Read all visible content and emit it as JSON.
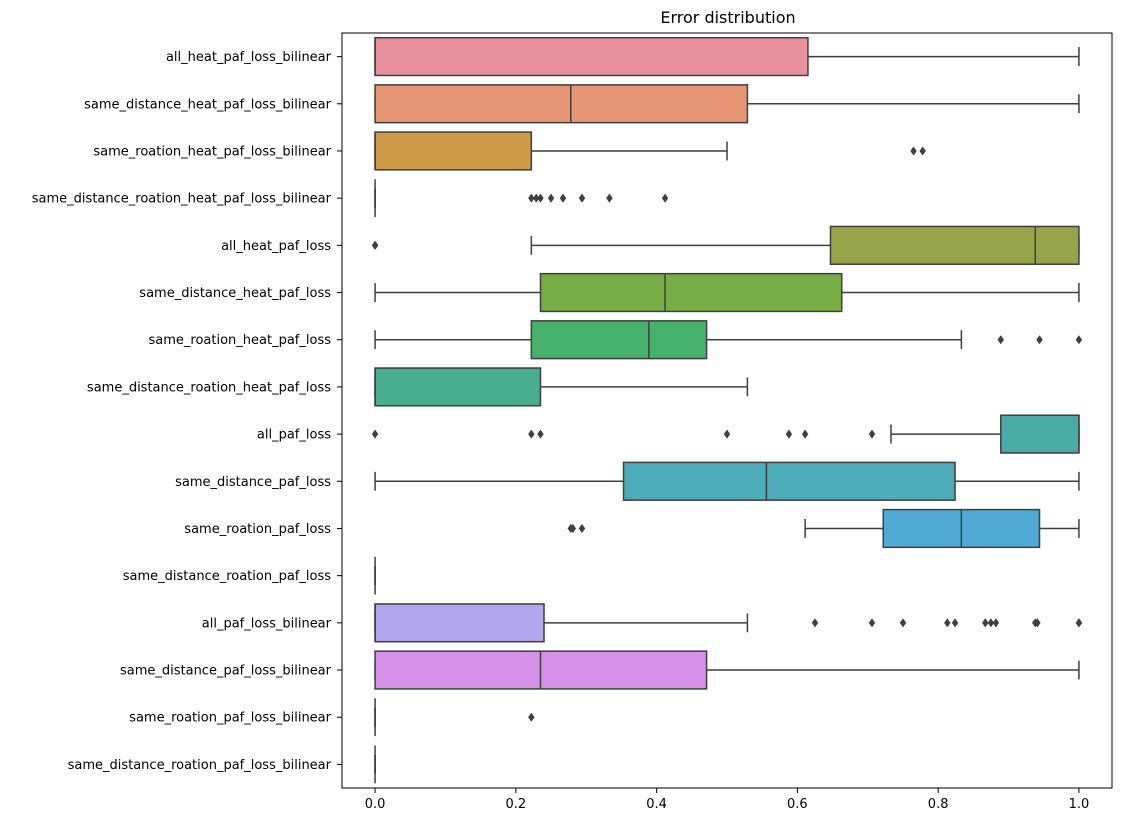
{
  "chart_data": {
    "type": "boxplot",
    "orientation": "horizontal",
    "title": "Error distribution",
    "xlabel": "",
    "ylabel": "",
    "xlim": [
      -0.047,
      1.047
    ],
    "xticks": [
      0.0,
      0.2,
      0.4,
      0.6,
      0.8,
      1.0
    ],
    "xtick_labels": [
      "0.0",
      "0.2",
      "0.4",
      "0.6",
      "0.8",
      "1.0"
    ],
    "grid": false,
    "categories": [
      "all_heat_paf_loss_bilinear",
      "same_distance_heat_paf_loss_bilinear",
      "same_roation_heat_paf_loss_bilinear",
      "same_distance_roation_heat_paf_loss_bilinear",
      "all_heat_paf_loss",
      "same_distance_heat_paf_loss",
      "same_roation_heat_paf_loss",
      "same_distance_roation_heat_paf_loss",
      "all_paf_loss",
      "same_distance_paf_loss",
      "same_roation_paf_loss",
      "same_distance_roation_paf_loss",
      "all_paf_loss_bilinear",
      "same_distance_paf_loss_bilinear",
      "same_roation_paf_loss_bilinear",
      "same_distance_roation_paf_loss_bilinear"
    ],
    "boxes": [
      {
        "color": "#e8909e",
        "whisker_low": 0.0,
        "q1": 0.0,
        "median": 0.0,
        "q3": 0.615,
        "whisker_high": 1.0,
        "outliers": []
      },
      {
        "color": "#e69574",
        "whisker_low": 0.0,
        "q1": 0.0,
        "median": 0.278,
        "q3": 0.529,
        "whisker_high": 1.0,
        "outliers": []
      },
      {
        "color": "#cd9a47",
        "whisker_low": 0.0,
        "q1": 0.0,
        "median": 0.0,
        "q3": 0.222,
        "whisker_high": 0.5,
        "outliers": [
          0.765,
          0.778
        ]
      },
      {
        "color": "#b3a24a",
        "whisker_low": 0.0,
        "q1": 0.0,
        "median": 0.0,
        "q3": 0.0,
        "whisker_high": 0.0,
        "outliers": [
          0.222,
          0.229,
          0.235,
          0.25,
          0.267,
          0.294,
          0.333,
          0.412
        ]
      },
      {
        "color": "#98a449",
        "whisker_low": 0.222,
        "q1": 0.647,
        "median": 0.938,
        "q3": 1.0,
        "whisker_high": 1.0,
        "outliers": [
          0.0,
          0.0
        ]
      },
      {
        "color": "#77ad45",
        "whisker_low": 0.0,
        "q1": 0.235,
        "median": 0.412,
        "q3": 0.663,
        "whisker_high": 1.0,
        "outliers": []
      },
      {
        "color": "#46b16b",
        "whisker_low": 0.0,
        "q1": 0.222,
        "median": 0.389,
        "q3": 0.471,
        "whisker_high": 0.833,
        "outliers": [
          0.889,
          0.944,
          1.0
        ]
      },
      {
        "color": "#48ae8f",
        "whisker_low": 0.0,
        "q1": 0.0,
        "median": 0.0,
        "q3": 0.235,
        "whisker_high": 0.529,
        "outliers": []
      },
      {
        "color": "#48aca5",
        "whisker_low": 0.733,
        "q1": 0.889,
        "median": 1.0,
        "q3": 1.0,
        "whisker_high": 1.0,
        "outliers": [
          0.0,
          0.222,
          0.235,
          0.5,
          0.588,
          0.611,
          0.706
        ]
      },
      {
        "color": "#4cacba",
        "whisker_low": 0.0,
        "q1": 0.353,
        "median": 0.556,
        "q3": 0.824,
        "whisker_high": 1.0,
        "outliers": []
      },
      {
        "color": "#51aad5",
        "whisker_low": 0.611,
        "q1": 0.722,
        "median": 0.833,
        "q3": 0.944,
        "whisker_high": 1.0,
        "outliers": [
          0.278,
          0.281,
          0.294
        ]
      },
      {
        "color": "#8fa6e8",
        "whisker_low": 0.0,
        "q1": 0.0,
        "median": 0.0,
        "q3": 0.0,
        "whisker_high": 0.0,
        "outliers": []
      },
      {
        "color": "#b3a6ed",
        "whisker_low": 0.0,
        "q1": 0.0,
        "median": 0.0,
        "q3": 0.24,
        "whisker_high": 0.529,
        "outliers": [
          0.625,
          0.706,
          0.75,
          0.813,
          0.824,
          0.867,
          0.875,
          0.882,
          0.938,
          0.941,
          1.0,
          1.0
        ]
      },
      {
        "color": "#d590e8",
        "whisker_low": 0.0,
        "q1": 0.0,
        "median": 0.235,
        "q3": 0.471,
        "whisker_high": 1.0,
        "outliers": []
      },
      {
        "color": "#e28fd5",
        "whisker_low": 0.0,
        "q1": 0.0,
        "median": 0.0,
        "q3": 0.0,
        "whisker_high": 0.0,
        "outliers": [
          0.222
        ]
      },
      {
        "color": "#e98ebb",
        "whisker_low": 0.0,
        "q1": 0.0,
        "median": 0.0,
        "q3": 0.0,
        "whisker_high": 0.0,
        "outliers": []
      }
    ]
  },
  "styles": {
    "line_color": "#3f3f3f",
    "axis_color": "#000000",
    "background": "#ffffff"
  }
}
